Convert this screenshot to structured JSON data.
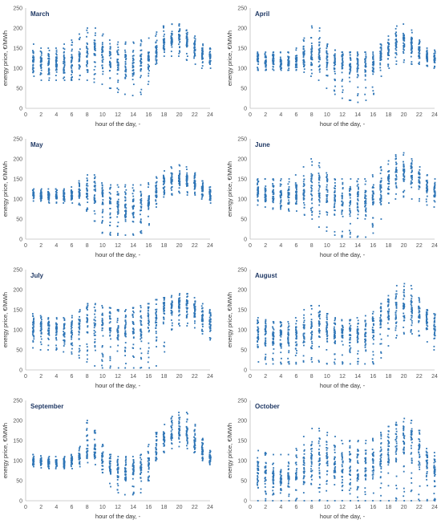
{
  "chart_data": [
    {
      "type": "scatter",
      "title": "March",
      "xlabel": "hour of the day, -",
      "ylabel": "energy price, €/MWh",
      "xlim": [
        0,
        24
      ],
      "ylim": [
        0,
        250
      ],
      "xticks": [
        0,
        2,
        4,
        6,
        8,
        10,
        12,
        14,
        16,
        18,
        20,
        22,
        24
      ],
      "yticks": [
        0,
        50,
        100,
        150,
        200,
        250
      ],
      "series": [
        {
          "x": [
            1,
            2,
            3,
            4,
            5,
            6,
            7,
            8,
            9,
            10,
            11,
            12,
            13,
            14,
            15,
            16,
            17,
            18,
            19,
            20,
            21,
            22,
            23,
            24
          ],
          "min": [
            80,
            70,
            70,
            70,
            70,
            70,
            72,
            70,
            65,
            60,
            50,
            40,
            35,
            32,
            35,
            60,
            110,
            130,
            130,
            130,
            120,
            110,
            100,
            100
          ],
          "center": [
            120,
            115,
            112,
            110,
            108,
            112,
            120,
            135,
            140,
            130,
            120,
            115,
            110,
            108,
            110,
            120,
            140,
            160,
            170,
            175,
            165,
            150,
            135,
            125
          ],
          "max": [
            160,
            150,
            150,
            150,
            160,
            170,
            185,
            200,
            200,
            185,
            170,
            165,
            165,
            165,
            170,
            175,
            190,
            205,
            210,
            210,
            195,
            180,
            160,
            150
          ]
        }
      ]
    },
    {
      "type": "scatter",
      "title": "April",
      "xlabel": "hour of the day, -",
      "ylabel": "energy price, €/MWh",
      "xlim": [
        0,
        24
      ],
      "ylim": [
        0,
        250
      ],
      "xticks": [
        0,
        2,
        4,
        6,
        8,
        10,
        12,
        14,
        16,
        18,
        20,
        22,
        24
      ],
      "yticks": [
        0,
        50,
        100,
        150,
        200,
        250
      ],
      "series": [
        {
          "x": [
            1,
            2,
            3,
            4,
            5,
            6,
            7,
            8,
            9,
            10,
            11,
            12,
            13,
            14,
            15,
            16,
            17,
            18,
            19,
            20,
            21,
            22,
            23,
            24
          ],
          "min": [
            95,
            95,
            95,
            95,
            95,
            95,
            90,
            80,
            70,
            50,
            35,
            25,
            20,
            15,
            20,
            35,
            80,
            100,
            110,
            115,
            110,
            110,
            105,
            100
          ],
          "center": [
            120,
            118,
            116,
            115,
            115,
            118,
            125,
            135,
            135,
            125,
            118,
            112,
            108,
            105,
            108,
            115,
            130,
            145,
            160,
            165,
            160,
            145,
            130,
            122
          ],
          "max": [
            140,
            140,
            140,
            140,
            140,
            150,
            175,
            205,
            200,
            160,
            145,
            140,
            140,
            140,
            140,
            140,
            160,
            180,
            205,
            210,
            195,
            170,
            150,
            145
          ]
        }
      ]
    },
    {
      "type": "scatter",
      "title": "May",
      "xlabel": "hour of the day, -",
      "ylabel": "energy price, €/MWh",
      "xlim": [
        0,
        24
      ],
      "ylim": [
        0,
        250
      ],
      "xticks": [
        0,
        2,
        4,
        6,
        8,
        10,
        12,
        14,
        16,
        18,
        20,
        22,
        24
      ],
      "yticks": [
        0,
        50,
        100,
        150,
        200,
        250
      ],
      "series": [
        {
          "x": [
            1,
            2,
            3,
            4,
            5,
            6,
            7,
            8,
            9,
            10,
            11,
            12,
            13,
            14,
            15,
            16,
            17,
            18,
            19,
            20,
            21,
            22,
            23,
            24
          ],
          "min": [
            95,
            95,
            90,
            90,
            90,
            90,
            85,
            70,
            45,
            15,
            10,
            10,
            10,
            10,
            15,
            35,
            80,
            105,
            110,
            115,
            110,
            110,
            100,
            90
          ],
          "center": [
            112,
            110,
            108,
            108,
            108,
            110,
            112,
            118,
            115,
            100,
            92,
            88,
            85,
            85,
            88,
            95,
            118,
            135,
            145,
            150,
            148,
            140,
            125,
            115
          ],
          "max": [
            125,
            125,
            125,
            125,
            125,
            130,
            145,
            160,
            160,
            140,
            135,
            135,
            135,
            135,
            135,
            140,
            155,
            170,
            180,
            185,
            180,
            165,
            145,
            130
          ]
        }
      ]
    },
    {
      "type": "scatter",
      "title": "June",
      "xlabel": "hour of the day, -",
      "ylabel": "energy price, €/MWh",
      "xlim": [
        0,
        24
      ],
      "ylim": [
        0,
        250
      ],
      "xticks": [
        0,
        2,
        4,
        6,
        8,
        10,
        12,
        14,
        16,
        18,
        20,
        22,
        24
      ],
      "yticks": [
        0,
        50,
        100,
        150,
        200,
        250
      ],
      "series": [
        {
          "x": [
            1,
            2,
            3,
            4,
            5,
            6,
            7,
            8,
            9,
            10,
            11,
            12,
            13,
            14,
            15,
            16,
            17,
            18,
            19,
            20,
            21,
            22,
            23,
            24
          ],
          "min": [
            85,
            80,
            75,
            75,
            70,
            70,
            60,
            50,
            30,
            20,
            10,
            5,
            5,
            5,
            5,
            15,
            50,
            90,
            100,
            105,
            100,
            95,
            85,
            80
          ],
          "center": [
            115,
            112,
            110,
            108,
            108,
            110,
            115,
            125,
            125,
            115,
            108,
            100,
            98,
            96,
            100,
            110,
            130,
            150,
            165,
            170,
            165,
            150,
            130,
            120
          ],
          "max": [
            150,
            150,
            150,
            150,
            150,
            160,
            180,
            200,
            190,
            165,
            150,
            150,
            150,
            150,
            150,
            160,
            180,
            195,
            210,
            215,
            200,
            180,
            160,
            150
          ]
        }
      ]
    },
    {
      "type": "scatter",
      "title": "July",
      "xlabel": "hour of the day, -",
      "ylabel": "energy price, €/MWh",
      "xlim": [
        0,
        24
      ],
      "ylim": [
        0,
        250
      ],
      "xticks": [
        0,
        2,
        4,
        6,
        8,
        10,
        12,
        14,
        16,
        18,
        20,
        22,
        24
      ],
      "yticks": [
        0,
        50,
        100,
        150,
        200,
        250
      ],
      "series": [
        {
          "x": [
            1,
            2,
            3,
            4,
            5,
            6,
            7,
            8,
            9,
            10,
            11,
            12,
            13,
            14,
            15,
            16,
            17,
            18,
            19,
            20,
            21,
            22,
            23,
            24
          ],
          "min": [
            55,
            50,
            50,
            50,
            45,
            40,
            30,
            20,
            10,
            5,
            5,
            5,
            5,
            5,
            5,
            5,
            10,
            45,
            100,
            110,
            110,
            105,
            90,
            75
          ],
          "center": [
            110,
            108,
            105,
            102,
            100,
            102,
            110,
            125,
            130,
            120,
            112,
            108,
            108,
            110,
            115,
            125,
            140,
            150,
            155,
            160,
            158,
            150,
            135,
            120
          ],
          "max": [
            140,
            135,
            130,
            130,
            130,
            135,
            150,
            165,
            165,
            160,
            155,
            150,
            150,
            155,
            160,
            165,
            175,
            180,
            185,
            190,
            190,
            180,
            165,
            150
          ]
        }
      ]
    },
    {
      "type": "scatter",
      "title": "August",
      "xlabel": "hour of the day, -",
      "ylabel": "energy price, €/MWh",
      "xlim": [
        0,
        24
      ],
      "ylim": [
        0,
        250
      ],
      "xticks": [
        0,
        2,
        4,
        6,
        8,
        10,
        12,
        14,
        16,
        18,
        20,
        22,
        24
      ],
      "yticks": [
        0,
        50,
        100,
        150,
        200,
        250
      ],
      "series": [
        {
          "x": [
            1,
            2,
            3,
            4,
            5,
            6,
            7,
            8,
            9,
            10,
            11,
            12,
            13,
            14,
            15,
            16,
            17,
            18,
            19,
            20,
            21,
            22,
            23,
            24
          ],
          "min": [
            20,
            15,
            15,
            15,
            15,
            15,
            20,
            20,
            20,
            15,
            15,
            15,
            15,
            15,
            15,
            15,
            30,
            60,
            80,
            90,
            90,
            85,
            70,
            50
          ],
          "center": [
            95,
            90,
            88,
            86,
            85,
            88,
            95,
            110,
            115,
            105,
            95,
            90,
            88,
            88,
            90,
            100,
            120,
            140,
            155,
            160,
            155,
            140,
            120,
            105
          ],
          "max": [
            130,
            125,
            120,
            120,
            120,
            130,
            150,
            160,
            160,
            140,
            130,
            125,
            125,
            130,
            135,
            145,
            165,
            185,
            210,
            215,
            210,
            180,
            150,
            140
          ]
        }
      ]
    },
    {
      "type": "scatter",
      "title": "September",
      "xlabel": "hour of the day, -",
      "ylabel": "energy price, €/MWh",
      "xlim": [
        0,
        24
      ],
      "ylim": [
        0,
        250
      ],
      "xticks": [
        0,
        2,
        4,
        6,
        8,
        10,
        12,
        14,
        16,
        18,
        20,
        22,
        24
      ],
      "yticks": [
        0,
        50,
        100,
        150,
        200,
        250
      ],
      "series": [
        {
          "x": [
            1,
            2,
            3,
            4,
            5,
            6,
            7,
            8,
            9,
            10,
            11,
            12,
            13,
            14,
            15,
            16,
            17,
            18,
            19,
            20,
            21,
            22,
            23,
            24
          ],
          "min": [
            85,
            82,
            80,
            80,
            80,
            80,
            85,
            95,
            90,
            70,
            35,
            20,
            15,
            15,
            20,
            50,
            100,
            120,
            130,
            135,
            130,
            120,
            100,
            90
          ],
          "center": [
            100,
            98,
            96,
            96,
            96,
            98,
            108,
            125,
            125,
            105,
            90,
            80,
            75,
            72,
            78,
            95,
            130,
            150,
            165,
            175,
            170,
            150,
            125,
            108
          ],
          "max": [
            115,
            112,
            110,
            110,
            110,
            115,
            135,
            200,
            175,
            140,
            115,
            110,
            110,
            110,
            115,
            140,
            170,
            190,
            210,
            220,
            220,
            190,
            155,
            125
          ]
        }
      ]
    },
    {
      "type": "scatter",
      "title": "October",
      "xlabel": "hour of the day, -",
      "ylabel": "energy price, €/MWh",
      "xlim": [
        0,
        24
      ],
      "ylim": [
        0,
        250
      ],
      "xticks": [
        0,
        2,
        4,
        6,
        8,
        10,
        12,
        14,
        16,
        18,
        20,
        22,
        24
      ],
      "yticks": [
        0,
        50,
        100,
        150,
        200,
        250
      ],
      "series": [
        {
          "x": [
            1,
            2,
            3,
            4,
            5,
            6,
            7,
            8,
            9,
            10,
            11,
            12,
            13,
            14,
            15,
            16,
            17,
            18,
            19,
            20,
            21,
            22,
            23,
            24
          ],
          "min": [
            0,
            0,
            0,
            0,
            0,
            0,
            0,
            0,
            0,
            0,
            0,
            0,
            0,
            0,
            0,
            0,
            0,
            0,
            0,
            0,
            0,
            0,
            0,
            0
          ],
          "center": [
            70,
            65,
            62,
            60,
            60,
            62,
            75,
            100,
            110,
            100,
            90,
            85,
            82,
            80,
            85,
            95,
            110,
            125,
            140,
            150,
            145,
            120,
            90,
            75
          ],
          "max": [
            125,
            120,
            115,
            115,
            115,
            130,
            160,
            180,
            180,
            170,
            160,
            150,
            150,
            150,
            150,
            155,
            170,
            185,
            195,
            205,
            200,
            175,
            130,
            120
          ]
        }
      ]
    }
  ]
}
